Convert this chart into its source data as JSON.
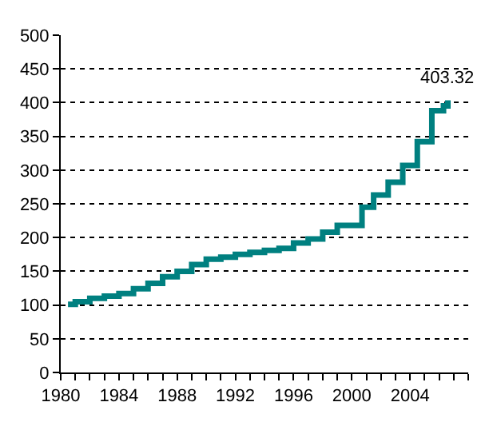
{
  "chart_data": {
    "type": "step",
    "x": [
      1980.5,
      1981,
      1982,
      1983,
      1984,
      1985,
      1986,
      1987,
      1988,
      1989,
      1990,
      1991,
      1992,
      1993,
      1994,
      1995,
      1996,
      1997,
      1998,
      1999,
      2000.7,
      2001.5,
      2002.5,
      2003.5,
      2004.5,
      2005.5,
      2006.3,
      2006.6
    ],
    "series": [
      {
        "color": "#008080",
        "values": [
          101,
          105,
          110,
          113,
          117,
          124,
          132,
          142,
          150,
          160,
          168,
          171,
          175,
          178,
          181,
          184,
          192,
          198,
          208,
          218,
          245,
          263,
          282,
          307,
          342,
          388,
          395,
          403.32
        ]
      }
    ],
    "xlim": [
      1980,
      2008
    ],
    "xticks": [
      1980,
      {
        "value": 1981,
        "label": null
      },
      {
        "value": 1982,
        "label": null
      },
      {
        "value": 1983,
        "label": null
      },
      1984,
      {
        "value": 1985,
        "label": null
      },
      {
        "value": 1986,
        "label": null
      },
      {
        "value": 1987,
        "label": null
      },
      1988,
      {
        "value": 1989,
        "label": null
      },
      {
        "value": 1990,
        "label": null
      },
      {
        "value": 1991,
        "label": null
      },
      1992,
      {
        "value": 1993,
        "label": null
      },
      {
        "value": 1994,
        "label": null
      },
      {
        "value": 1995,
        "label": null
      },
      1996,
      {
        "value": 1997,
        "label": null
      },
      {
        "value": 1998,
        "label": null
      },
      {
        "value": 1999,
        "label": null
      },
      2000,
      {
        "value": 2001,
        "label": null
      },
      {
        "value": 2002,
        "label": null
      },
      {
        "value": 2003,
        "label": null
      },
      2004,
      {
        "value": 2005,
        "label": null
      },
      {
        "value": 2006,
        "label": null
      },
      {
        "value": 2007,
        "label": null
      },
      {
        "value": 2008,
        "label": null
      }
    ],
    "ylim": [
      0,
      500
    ],
    "yticks": [
      0,
      50,
      100,
      150,
      200,
      250,
      300,
      350,
      400,
      450,
      500
    ],
    "grid": "y",
    "line_style": "solid",
    "marker": "none",
    "annotations": [
      {
        "text": "403.32",
        "x": 2006.6,
        "y": 403.32
      }
    ]
  }
}
